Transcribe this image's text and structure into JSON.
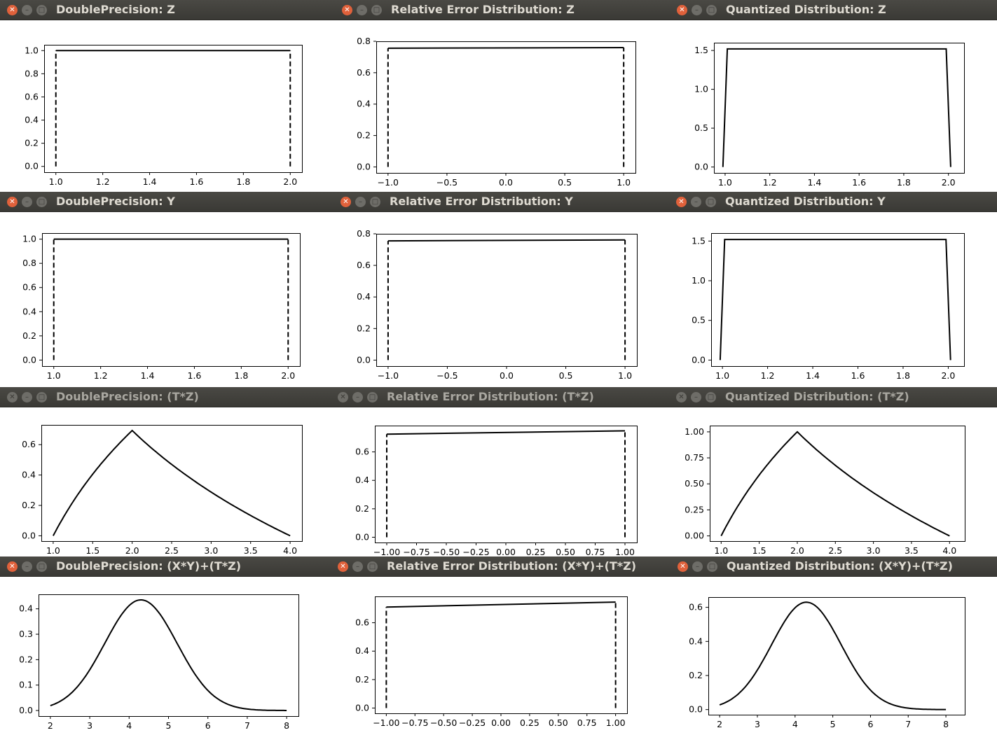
{
  "windows": [
    {
      "title": "DoublePrecision: Z",
      "active": true,
      "chart_data": {
        "type": "line",
        "shape": "uniform",
        "x": [
          1.0,
          2.0
        ],
        "y": [
          1.0,
          1.0
        ],
        "xlim": [
          0.95,
          2.05
        ],
        "ylim": [
          -0.05,
          1.05
        ],
        "xticks": [
          1.0,
          1.2,
          1.4,
          1.6,
          1.8,
          2.0
        ],
        "xtick_labels": [
          "1.0",
          "1.2",
          "1.4",
          "1.6",
          "1.8",
          "2.0"
        ],
        "yticks": [
          0,
          0.2,
          0.4,
          0.6,
          0.8,
          1.0
        ],
        "ytick_labels": [
          "0.0",
          "0.2",
          "0.4",
          "0.6",
          "0.8",
          "1.0"
        ]
      }
    },
    {
      "title": "Relative Error Distribution: Z",
      "active": true,
      "chart_data": {
        "type": "line",
        "shape": "uniform",
        "x": [
          -1.0,
          1.0
        ],
        "y": [
          0.756,
          0.76
        ],
        "xlim": [
          -1.1,
          1.1
        ],
        "ylim": [
          -0.038,
          0.8
        ],
        "xticks": [
          -1.0,
          -0.5,
          0,
          0.5,
          1.0
        ],
        "xtick_labels": [
          "−1.0",
          "−0.5",
          "0.0",
          "0.5",
          "1.0"
        ],
        "yticks": [
          0,
          0.2,
          0.4,
          0.6,
          0.8
        ],
        "ytick_labels": [
          "0.0",
          "0.2",
          "0.4",
          "0.6",
          "0.8"
        ]
      }
    },
    {
      "title": "Quantized Distribution: Z",
      "active": true,
      "chart_data": {
        "type": "line",
        "shape": "trapezoid",
        "x": [
          0.99,
          1.01,
          1.99,
          2.01
        ],
        "y": [
          0,
          1.52,
          1.52,
          0
        ],
        "xlim": [
          0.95,
          2.07
        ],
        "ylim": [
          -0.076,
          1.6
        ],
        "xticks": [
          1.0,
          1.2,
          1.4,
          1.6,
          1.8,
          2.0
        ],
        "xtick_labels": [
          "1.0",
          "1.2",
          "1.4",
          "1.6",
          "1.8",
          "2.0"
        ],
        "yticks": [
          0,
          0.5,
          1.0,
          1.5
        ],
        "ytick_labels": [
          "0.0",
          "0.5",
          "1.0",
          "1.5"
        ]
      }
    },
    {
      "title": "DoublePrecision: Y",
      "active": true,
      "chart_data": {
        "type": "line",
        "shape": "uniform",
        "x": [
          1.0,
          2.0
        ],
        "y": [
          1.0,
          1.0
        ],
        "xlim": [
          0.95,
          2.05
        ],
        "ylim": [
          -0.05,
          1.05
        ],
        "xticks": [
          1.0,
          1.2,
          1.4,
          1.6,
          1.8,
          2.0
        ],
        "xtick_labels": [
          "1.0",
          "1.2",
          "1.4",
          "1.6",
          "1.8",
          "2.0"
        ],
        "yticks": [
          0,
          0.2,
          0.4,
          0.6,
          0.8,
          1.0
        ],
        "ytick_labels": [
          "0.0",
          "0.2",
          "0.4",
          "0.6",
          "0.8",
          "1.0"
        ]
      }
    },
    {
      "title": "Relative Error Distribution: Y",
      "active": true,
      "chart_data": {
        "type": "line",
        "shape": "uniform",
        "x": [
          -1.0,
          1.0
        ],
        "y": [
          0.755,
          0.761
        ],
        "xlim": [
          -1.1,
          1.1
        ],
        "ylim": [
          -0.038,
          0.8
        ],
        "xticks": [
          -1.0,
          -0.5,
          0,
          0.5,
          1.0
        ],
        "xtick_labels": [
          "−1.0",
          "−0.5",
          "0.0",
          "0.5",
          "1.0"
        ],
        "yticks": [
          0,
          0.2,
          0.4,
          0.6,
          0.8
        ],
        "ytick_labels": [
          "0.0",
          "0.2",
          "0.4",
          "0.6",
          "0.8"
        ]
      }
    },
    {
      "title": "Quantized Distribution: Y",
      "active": true,
      "chart_data": {
        "type": "line",
        "shape": "trapezoid",
        "x": [
          0.99,
          1.01,
          1.99,
          2.01
        ],
        "y": [
          0,
          1.52,
          1.52,
          0
        ],
        "xlim": [
          0.95,
          2.07
        ],
        "ylim": [
          -0.076,
          1.6
        ],
        "xticks": [
          1.0,
          1.2,
          1.4,
          1.6,
          1.8,
          2.0
        ],
        "xtick_labels": [
          "1.0",
          "1.2",
          "1.4",
          "1.6",
          "1.8",
          "2.0"
        ],
        "yticks": [
          0,
          0.5,
          1.0,
          1.5
        ],
        "ytick_labels": [
          "0.0",
          "0.5",
          "1.0",
          "1.5"
        ]
      }
    },
    {
      "title": "DoublePrecision: (T*Z)",
      "active": false,
      "chart_data": {
        "type": "line",
        "shape": "peak",
        "x": [
          1.0,
          2.0,
          4.0
        ],
        "y": [
          0,
          0.693,
          0
        ],
        "xlim": [
          0.85,
          4.15
        ],
        "ylim": [
          -0.035,
          0.73
        ],
        "xticks": [
          1.0,
          1.5,
          2.0,
          2.5,
          3.0,
          3.5,
          4.0
        ],
        "xtick_labels": [
          "1.0",
          "1.5",
          "2.0",
          "2.5",
          "3.0",
          "3.5",
          "4.0"
        ],
        "yticks": [
          0,
          0.2,
          0.4,
          0.6
        ],
        "ytick_labels": [
          "0.0",
          "0.2",
          "0.4",
          "0.6"
        ]
      }
    },
    {
      "title": "Relative Error Distribution: (T*Z)",
      "active": false,
      "chart_data": {
        "type": "line",
        "shape": "uniform",
        "x": [
          -1.0,
          1.0
        ],
        "y": [
          0.725,
          0.748
        ],
        "xlim": [
          -1.1,
          1.1
        ],
        "ylim": [
          -0.037,
          0.785
        ],
        "xticks": [
          -1.0,
          -0.75,
          -0.5,
          -0.25,
          0,
          0.25,
          0.5,
          0.75,
          1.0
        ],
        "xtick_labels": [
          "−1.00",
          "−0.75",
          "−0.50",
          "−0.25",
          "0.00",
          "0.25",
          "0.50",
          "0.75",
          "1.00"
        ],
        "yticks": [
          0,
          0.2,
          0.4,
          0.6
        ],
        "ytick_labels": [
          "0.0",
          "0.2",
          "0.4",
          "0.6"
        ]
      }
    },
    {
      "title": "Quantized Distribution: (T*Z)",
      "active": false,
      "chart_data": {
        "type": "line",
        "shape": "peak",
        "x": [
          1.0,
          2.0,
          4.0
        ],
        "y": [
          0,
          1.0,
          0
        ],
        "xlim": [
          0.85,
          4.2
        ],
        "ylim": [
          -0.05,
          1.06
        ],
        "xticks": [
          1.0,
          1.5,
          2.0,
          2.5,
          3.0,
          3.5,
          4.0
        ],
        "xtick_labels": [
          "1.0",
          "1.5",
          "2.0",
          "2.5",
          "3.0",
          "3.5",
          "4.0"
        ],
        "yticks": [
          0,
          0.25,
          0.5,
          0.75,
          1.0
        ],
        "ytick_labels": [
          "0.00",
          "0.25",
          "0.50",
          "0.75",
          "1.00"
        ]
      }
    },
    {
      "title": "DoublePrecision: (X*Y)+(T*Z)",
      "active": true,
      "chart_data": {
        "type": "line",
        "shape": "bell",
        "mean": 4.3,
        "sd": 0.92,
        "peak": 0.435,
        "x": [
          2,
          8
        ],
        "xlim": [
          1.7,
          8.3
        ],
        "ylim": [
          -0.022,
          0.457
        ],
        "xticks": [
          2,
          3,
          4,
          5,
          6,
          7,
          8
        ],
        "xtick_labels": [
          "2",
          "3",
          "4",
          "5",
          "6",
          "7",
          "8"
        ],
        "yticks": [
          0,
          0.1,
          0.2,
          0.3,
          0.4
        ],
        "ytick_labels": [
          "0.0",
          "0.1",
          "0.2",
          "0.3",
          "0.4"
        ]
      }
    },
    {
      "title": "Relative Error Distribution: (X*Y)+(T*Z)",
      "active": true,
      "chart_data": {
        "type": "line",
        "shape": "uniform",
        "x": [
          -1.0,
          1.0
        ],
        "y": [
          0.71,
          0.745
        ],
        "xlim": [
          -1.1,
          1.1
        ],
        "ylim": [
          -0.037,
          0.785
        ],
        "xticks": [
          -1.0,
          -0.75,
          -0.5,
          -0.25,
          0,
          0.25,
          0.5,
          0.75,
          1.0
        ],
        "xtick_labels": [
          "−1.00",
          "−0.75",
          "−0.50",
          "−0.25",
          "0.00",
          "0.25",
          "0.50",
          "0.75",
          "1.00"
        ],
        "yticks": [
          0,
          0.2,
          0.4,
          0.6
        ],
        "ytick_labels": [
          "0.0",
          "0.2",
          "0.4",
          "0.6"
        ]
      }
    },
    {
      "title": "Quantized Distribution: (X*Y)+(T*Z)",
      "active": true,
      "chart_data": {
        "type": "line",
        "shape": "bell",
        "mean": 4.3,
        "sd": 0.92,
        "peak": 0.63,
        "x": [
          2,
          8
        ],
        "xlim": [
          1.7,
          8.5
        ],
        "ylim": [
          -0.03,
          0.66
        ],
        "xticks": [
          2,
          3,
          4,
          5,
          6,
          7,
          8
        ],
        "xtick_labels": [
          "2",
          "3",
          "4",
          "5",
          "6",
          "7",
          "8"
        ],
        "yticks": [
          0,
          0.2,
          0.4,
          0.6
        ],
        "ytick_labels": [
          "0.0",
          "0.2",
          "0.4",
          "0.6"
        ]
      }
    }
  ]
}
